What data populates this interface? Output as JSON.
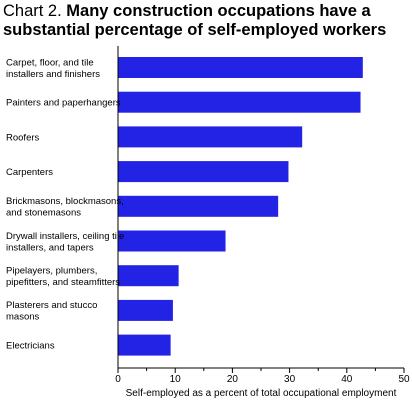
{
  "title": {
    "label": "Chart 2.",
    "text": "Many construction occupations have a substantial percentage of self-employed workers"
  },
  "chart_data": {
    "type": "bar",
    "orientation": "horizontal",
    "categories": [
      [
        "Carpet, floor, and tile",
        "installers and finishers"
      ],
      [
        "Painters and paperhangers"
      ],
      [
        "Roofers"
      ],
      [
        "Carpenters"
      ],
      [
        "Brickmasons, blockmasons,",
        "and stonemasons"
      ],
      [
        "Drywall installers, ceiling tile",
        "installers, and tapers"
      ],
      [
        "Pipelayers, plumbers,",
        "pipefitters, and steamfitters"
      ],
      [
        "Plasterers and stucco",
        "masons"
      ],
      [
        "Electricians"
      ]
    ],
    "values": [
      42.8,
      42.4,
      32.2,
      29.8,
      28.0,
      18.8,
      10.6,
      9.6,
      9.2
    ],
    "xlim": [
      0,
      50
    ],
    "xticks": [
      "0",
      "10",
      "20",
      "30",
      "40",
      "50"
    ],
    "xlabel": "Self-employed as a percent of total occupational employment",
    "bar_color": "#2323e6",
    "grid": false
  }
}
